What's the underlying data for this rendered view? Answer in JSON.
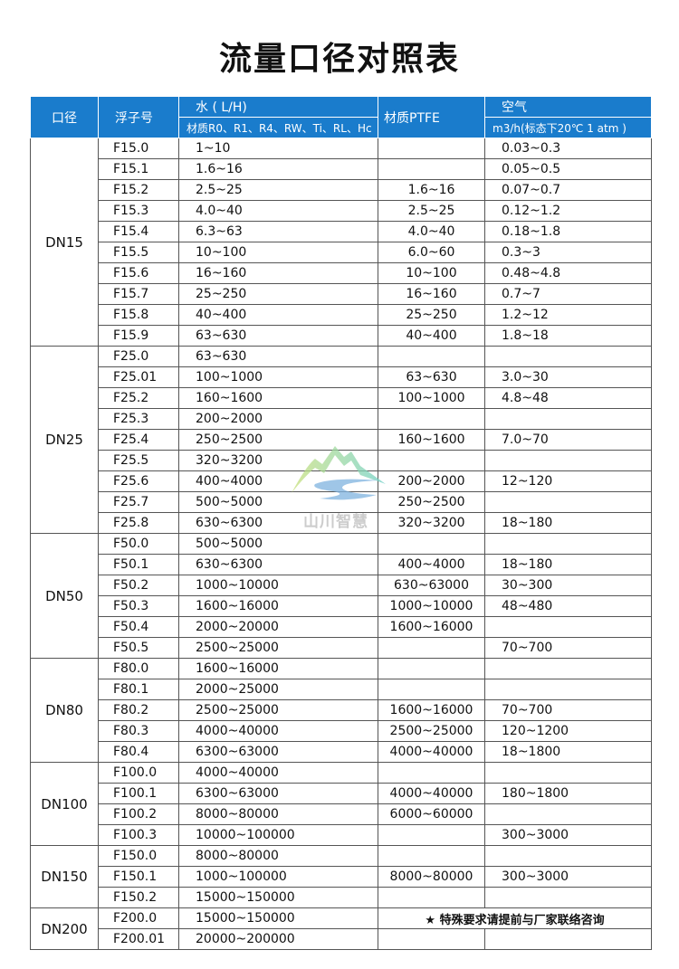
{
  "title": "流量口径对照表",
  "watermark": "山川智慧",
  "colors": {
    "header_bg": "#1a7ccc",
    "header_text": "#ffffff"
  },
  "header": {
    "caliber": "口径",
    "float": "浮子号",
    "water": "水 ( L/H)",
    "water_material": "材质R0、R1、R4、RW、Ti、RL、Hc",
    "ptfe": "材质PTFE",
    "air": "空气",
    "air_unit": "m3/h(标态下20℃ 1 atm )"
  },
  "note": "★  特殊要求请提前与厂家联络咨询",
  "groups": [
    {
      "dn": "DN15",
      "rows": [
        [
          "F15.0",
          "1~10",
          "",
          "0.03~0.3"
        ],
        [
          "F15.1",
          "1.6~16",
          "",
          "0.05~0.5"
        ],
        [
          "F15.2",
          "2.5~25",
          "1.6~16",
          "0.07~0.7"
        ],
        [
          "F15.3",
          "4.0~40",
          "2.5~25",
          "0.12~1.2"
        ],
        [
          "F15.4",
          "6.3~63",
          "4.0~40",
          "0.18~1.8"
        ],
        [
          "F15.5",
          "10~100",
          "6.0~60",
          "0.3~3"
        ],
        [
          "F15.6",
          "16~160",
          "10~100",
          "0.48~4.8"
        ],
        [
          "F15.7",
          "25~250",
          "16~160",
          "0.7~7"
        ],
        [
          "F15.8",
          "40~400",
          "25~250",
          "1.2~12"
        ],
        [
          "F15.9",
          "63~630",
          "40~400",
          "1.8~18"
        ]
      ]
    },
    {
      "dn": "DN25",
      "rows": [
        [
          "F25.0",
          "63~630",
          "",
          ""
        ],
        [
          "F25.01",
          "100~1000",
          "63~630",
          "3.0~30"
        ],
        [
          "F25.2",
          "160~1600",
          "100~1000",
          "4.8~48"
        ],
        [
          "F25.3",
          "200~2000",
          "",
          ""
        ],
        [
          "F25.4",
          "250~2500",
          "160~1600",
          "7.0~70"
        ],
        [
          "F25.5",
          "320~3200",
          "",
          ""
        ],
        [
          "F25.6",
          "400~4000",
          "200~2000",
          "12~120"
        ],
        [
          "F25.7",
          "500~5000",
          "250~2500",
          ""
        ],
        [
          "F25.8",
          "630~6300",
          "320~3200",
          "18~180"
        ]
      ]
    },
    {
      "dn": "DN50",
      "rows": [
        [
          "F50.0",
          "500~5000",
          "",
          ""
        ],
        [
          "F50.1",
          "630~6300",
          "400~4000",
          "18~180"
        ],
        [
          "F50.2",
          "1000~10000",
          "630~63000",
          "30~300"
        ],
        [
          "F50.3",
          "1600~16000",
          "1000~10000",
          "48~480"
        ],
        [
          "F50.4",
          "2000~20000",
          "1600~16000",
          ""
        ],
        [
          "F50.5",
          "2500~25000",
          "",
          "70~700"
        ]
      ]
    },
    {
      "dn": "DN80",
      "rows": [
        [
          "F80.0",
          "1600~16000",
          "",
          ""
        ],
        [
          "F80.1",
          "2000~25000",
          "",
          ""
        ],
        [
          "F80.2",
          "2500~25000",
          "1600~16000",
          "70~700"
        ],
        [
          "F80.3",
          "4000~40000",
          "2500~25000",
          "120~1200"
        ],
        [
          "F80.4",
          "6300~63000",
          "4000~40000",
          "18~1800"
        ]
      ]
    },
    {
      "dn": "DN100",
      "rows": [
        [
          "F100.0",
          "4000~40000",
          "",
          ""
        ],
        [
          "F100.1",
          "6300~63000",
          "4000~40000",
          "180~1800"
        ],
        [
          "F100.2",
          "8000~80000",
          "6000~60000",
          ""
        ],
        [
          "F100.3",
          "10000~100000",
          "",
          "300~3000"
        ]
      ]
    },
    {
      "dn": "DN150",
      "rows": [
        [
          "F150.0",
          "8000~80000",
          "",
          ""
        ],
        [
          "F150.1",
          "1000~100000",
          "8000~80000",
          "300~3000"
        ],
        [
          "F150.2",
          "15000~150000",
          "",
          ""
        ]
      ]
    },
    {
      "dn": "DN200",
      "rows": [
        [
          "F200.0",
          "15000~150000",
          "",
          ""
        ],
        [
          "F200.01",
          "20000~200000",
          "",
          ""
        ]
      ]
    }
  ]
}
